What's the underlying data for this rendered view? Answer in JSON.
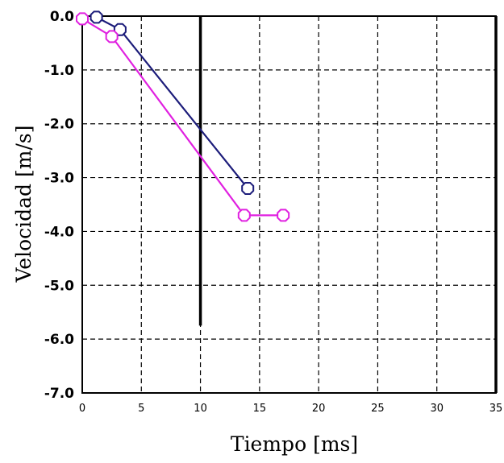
{
  "chart_data": {
    "type": "line",
    "title": "",
    "xlabel": "Tiempo [ms]",
    "ylabel": "Velocidad [m/s]",
    "xlim": [
      0,
      35
    ],
    "ylim": [
      -7.0,
      0.0
    ],
    "x_ticks": [
      0,
      5,
      10,
      15,
      20,
      25,
      30,
      35
    ],
    "x_tick_labels": [
      "0",
      "5",
      "10",
      "15",
      "20",
      "25",
      "30",
      "35"
    ],
    "y_ticks": [
      0.0,
      -1.0,
      -2.0,
      -3.0,
      -4.0,
      -5.0,
      -6.0,
      -7.0
    ],
    "y_tick_labels": [
      "0.0",
      "-1.0",
      "-2.0",
      "-3.0",
      "-4.0",
      "-5.0",
      "-6.0",
      "-7.0"
    ],
    "grid": true,
    "grid_style": "dashed",
    "legend": "none",
    "reference_lines": [
      {
        "orientation": "vertical",
        "x": 10,
        "y_from": 0.0,
        "y_to": -5.75,
        "color": "#000000"
      },
      {
        "orientation": "vertical",
        "x": 35,
        "y_from": 0.0,
        "y_to": -7.0,
        "color": "#000000"
      }
    ],
    "series": [
      {
        "color": "#1c1c7a",
        "marker": "circle",
        "points": [
          {
            "x": 1.2,
            "y": -0.02
          },
          {
            "x": 3.2,
            "y": -0.25
          },
          {
            "x": 14.0,
            "y": -3.2
          }
        ]
      },
      {
        "color": "#e020e0",
        "marker": "circle",
        "points": [
          {
            "x": 0.0,
            "y": -0.05
          },
          {
            "x": 2.5,
            "y": -0.38
          },
          {
            "x": 13.7,
            "y": -3.7
          },
          {
            "x": 17.0,
            "y": -3.7
          }
        ]
      }
    ]
  }
}
